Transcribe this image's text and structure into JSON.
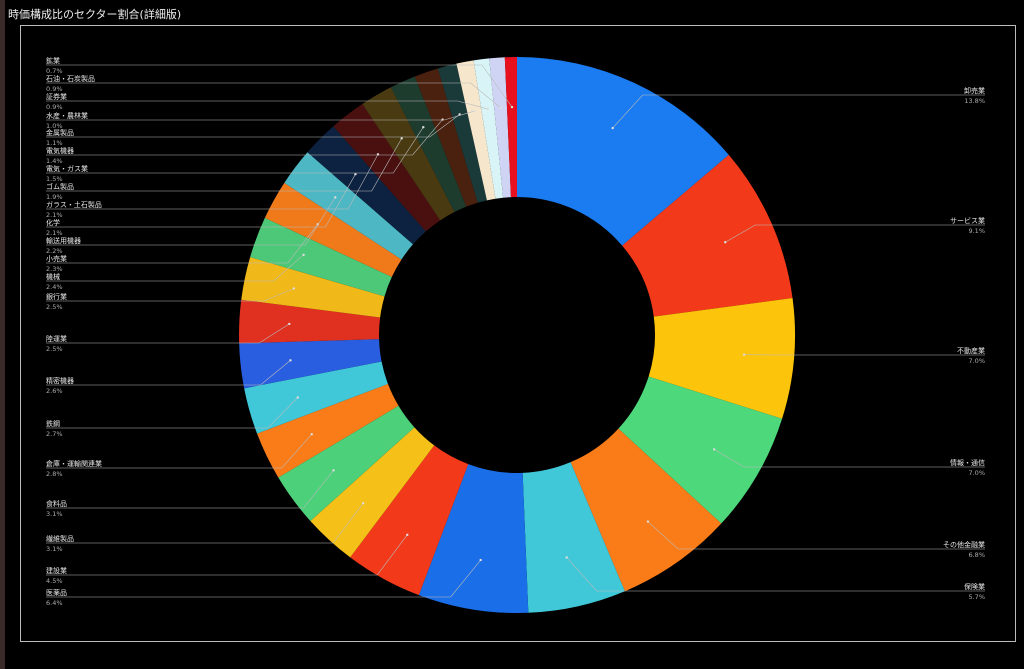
{
  "chart_data": {
    "type": "pie",
    "variant": "donut",
    "title": "時価構成比のセクター割合(詳細版)",
    "unit": "%",
    "slices": [
      {
        "label": "卸売業",
        "value": 13.8,
        "color": "#1a7cf0"
      },
      {
        "label": "サービス業",
        "value": 9.1,
        "color": "#f23a1a"
      },
      {
        "label": "不動産業",
        "value": 7.0,
        "color": "#fdc40c"
      },
      {
        "label": "情報・通信",
        "value": 7.0,
        "color": "#4dd87c"
      },
      {
        "label": "その他金融業",
        "value": 6.8,
        "color": "#f97c18"
      },
      {
        "label": "保険業",
        "value": 5.7,
        "color": "#40c8d8"
      },
      {
        "label": "医薬品",
        "value": 6.4,
        "color": "#1a6ee8"
      },
      {
        "label": "建設業",
        "value": 4.5,
        "color": "#f23a1a"
      },
      {
        "label": "繊維製品",
        "value": 3.1,
        "color": "#f5c018"
      },
      {
        "label": "食料品",
        "value": 3.1,
        "color": "#4dd07a"
      },
      {
        "label": "倉庫・運輸関連業",
        "value": 2.8,
        "color": "#f97c18"
      },
      {
        "label": "鉄鋼",
        "value": 2.7,
        "color": "#40c8d8"
      },
      {
        "label": "精密機器",
        "value": 2.6,
        "color": "#2a5ee0"
      },
      {
        "label": "陸運業",
        "value": 2.5,
        "color": "#e03020"
      },
      {
        "label": "銀行業",
        "value": 2.5,
        "color": "#f0b818"
      },
      {
        "label": "機械",
        "value": 2.4,
        "color": "#4cc878"
      },
      {
        "label": "小売業",
        "value": 2.3,
        "color": "#f07a1a"
      },
      {
        "label": "輸送用機器",
        "value": 2.2,
        "color": "#4db8c4"
      },
      {
        "label": "化学",
        "value": 2.1,
        "color": "#0c2240"
      },
      {
        "label": "ガラス・土石製品",
        "value": 2.1,
        "color": "#4a1010"
      },
      {
        "label": "ゴム製品",
        "value": 1.9,
        "color": "#4a3a12"
      },
      {
        "label": "電気・ガス業",
        "value": 1.5,
        "color": "#1e3c2e"
      },
      {
        "label": "電気機器",
        "value": 1.4,
        "color": "#4a200e"
      },
      {
        "label": "金属製品",
        "value": 1.1,
        "color": "#1a3a3a"
      },
      {
        "label": "水産・農林業",
        "value": 1.0,
        "color": "#f5e6cc"
      },
      {
        "label": "証券業",
        "value": 0.9,
        "color": "#d8f4f6"
      },
      {
        "label": "石油・石炭製品",
        "value": 0.9,
        "color": "#d0d4f4"
      },
      {
        "label": "鉱業",
        "value": 0.7,
        "color": "#e8101e"
      }
    ],
    "legend": "none"
  }
}
